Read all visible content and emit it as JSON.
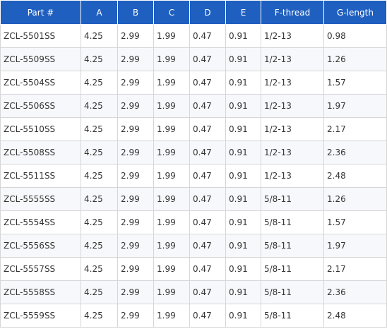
{
  "table": {
    "headers": [
      "Part #",
      "A",
      "B",
      "C",
      "D",
      "E",
      "F-thread",
      "G-length"
    ],
    "rows": [
      [
        "ZCL-5501SS",
        "4.25",
        "2.99",
        "1.99",
        "0.47",
        "0.91",
        "1/2-13",
        "0.98"
      ],
      [
        "ZCL-5509SS",
        "4.25",
        "2.99",
        "1.99",
        "0.47",
        "0.91",
        "1/2-13",
        "1.26"
      ],
      [
        "ZCL-5504SS",
        "4.25",
        "2.99",
        "1.99",
        "0.47",
        "0.91",
        "1/2-13",
        "1.57"
      ],
      [
        "ZCL-5506SS",
        "4.25",
        "2.99",
        "1.99",
        "0.47",
        "0.91",
        "1/2-13",
        "1.97"
      ],
      [
        "ZCL-5510SS",
        "4.25",
        "2.99",
        "1.99",
        "0.47",
        "0.91",
        "1/2-13",
        "2.17"
      ],
      [
        "ZCL-5508SS",
        "4.25",
        "2.99",
        "1.99",
        "0.47",
        "0.91",
        "1/2-13",
        "2.36"
      ],
      [
        "ZCL-5511SS",
        "4.25",
        "2.99",
        "1.99",
        "0.47",
        "0.91",
        "1/2-13",
        "2.48"
      ],
      [
        "ZCL-5555SS",
        "4.25",
        "2.99",
        "1.99",
        "0.47",
        "0.91",
        "5/8-11",
        "1.26"
      ],
      [
        "ZCL-5554SS",
        "4.25",
        "2.99",
        "1.99",
        "0.47",
        "0.91",
        "5/8-11",
        "1.57"
      ],
      [
        "ZCL-5556SS",
        "4.25",
        "2.99",
        "1.99",
        "0.47",
        "0.91",
        "5/8-11",
        "1.97"
      ],
      [
        "ZCL-5557SS",
        "4.25",
        "2.99",
        "1.99",
        "0.47",
        "0.91",
        "5/8-11",
        "2.17"
      ],
      [
        "ZCL-5558SS",
        "4.25",
        "2.99",
        "1.99",
        "0.47",
        "0.91",
        "5/8-11",
        "2.36"
      ],
      [
        "ZCL-5559SS",
        "4.25",
        "2.99",
        "1.99",
        "0.47",
        "0.91",
        "5/8-11",
        "2.48"
      ]
    ]
  },
  "colors": {
    "header_background": "#1f5fbf",
    "header_text": "#ffffff",
    "cell_border": "#d6d6d6",
    "row_alt_background": "#f7f8fb"
  }
}
